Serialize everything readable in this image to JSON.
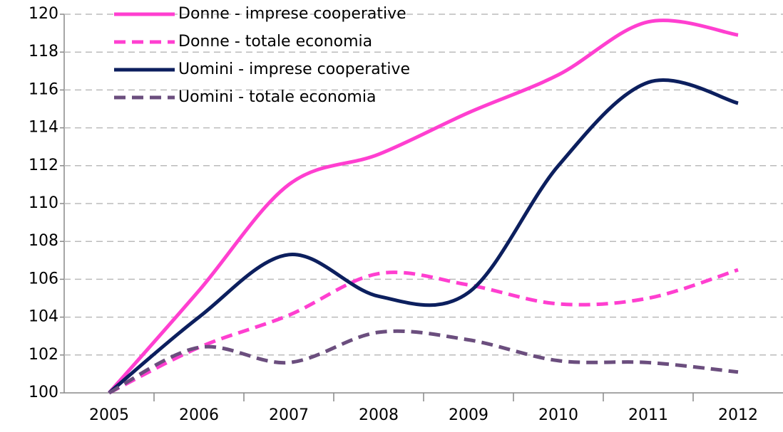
{
  "chart_data": {
    "type": "line",
    "categories": [
      "2005",
      "2006",
      "2007",
      "2008",
      "2009",
      "2010",
      "2011",
      "2012"
    ],
    "series": [
      {
        "name": "Donne - imprese cooperative",
        "color": "#ff3fd0",
        "dashed": false,
        "values": [
          100,
          105.4,
          111,
          112.6,
          114.8,
          116.8,
          119.6,
          118.9
        ]
      },
      {
        "name": "Donne - totale economia",
        "color": "#ff3fd0",
        "dashed": true,
        "values": [
          100,
          102.4,
          104.1,
          106.3,
          105.7,
          104.7,
          105.0,
          106.5
        ]
      },
      {
        "name": "Uomini - imprese cooperative",
        "color": "#0c1f5e",
        "dashed": false,
        "values": [
          100,
          104,
          107.3,
          105.1,
          105.3,
          112,
          116.4,
          115.3
        ]
      },
      {
        "name": "Uomini - totale economia",
        "color": "#6b4e7e",
        "dashed": true,
        "values": [
          100,
          102.4,
          101.6,
          103.2,
          102.8,
          101.7,
          101.6,
          101.1
        ]
      }
    ],
    "ylim": [
      100,
      120
    ],
    "yticks": [
      100,
      102,
      104,
      106,
      108,
      110,
      112,
      114,
      116,
      118,
      120
    ],
    "grid": true,
    "smooth": true,
    "legend": "top-left"
  }
}
